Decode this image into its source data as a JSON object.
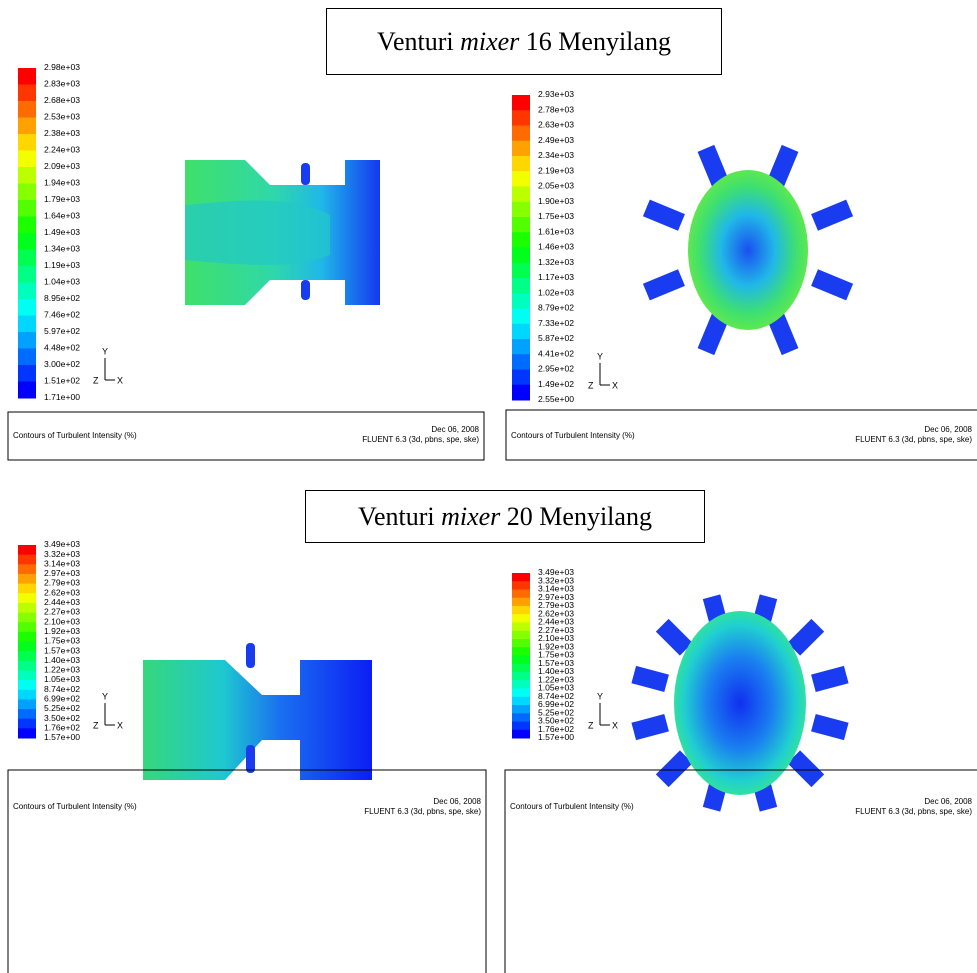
{
  "sections": [
    {
      "title": {
        "pre": "Venturi ",
        "italic": "mixer",
        "post": " 16 Menyilang"
      },
      "panels": [
        {
          "legend": [
            "2.98e+03",
            "2.83e+03",
            "2.68e+03",
            "2.53e+03",
            "2.38e+03",
            "2.24e+03",
            "2.09e+03",
            "1.94e+03",
            "1.79e+03",
            "1.64e+03",
            "1.49e+03",
            "1.34e+03",
            "1.19e+03",
            "1.04e+03",
            "8.95e+02",
            "7.46e+02",
            "5.97e+02",
            "4.48e+02",
            "3.00e+02",
            "1.51e+02",
            "1.71e+00"
          ],
          "caption": "Contours of Turbulent Intensity (%)",
          "date": "Dec 06, 2008",
          "solver": "FLUENT 6.3 (3d, pbns, spe, ske)",
          "axes": {
            "y": "Y",
            "z": "Z",
            "x": "X"
          }
        },
        {
          "legend": [
            "2.93e+03",
            "2.78e+03",
            "2.63e+03",
            "2.49e+03",
            "2.34e+03",
            "2.19e+03",
            "2.05e+03",
            "1.90e+03",
            "1.75e+03",
            "1.61e+03",
            "1.46e+03",
            "1.32e+03",
            "1.17e+03",
            "1.02e+03",
            "8.79e+02",
            "7.33e+02",
            "5.87e+02",
            "4.41e+02",
            "2.95e+02",
            "1.49e+02",
            "2.55e+00"
          ],
          "caption": "Contours of Turbulent Intensity (%)",
          "date": "Dec 06, 2008",
          "solver": "FLUENT 6.3 (3d, pbns, spe, ske)",
          "axes": {
            "y": "Y",
            "z": "Z",
            "x": "X"
          }
        }
      ]
    },
    {
      "title": {
        "pre": "Venturi ",
        "italic": "mixer",
        "post": " 20 Menyilang"
      },
      "panels": [
        {
          "legend": [
            "3.49e+03",
            "3.32e+03",
            "3.14e+03",
            "2.97e+03",
            "2.79e+03",
            "2.62e+03",
            "2.44e+03",
            "2.27e+03",
            "2.10e+03",
            "1.92e+03",
            "1.75e+03",
            "1.57e+03",
            "1.40e+03",
            "1.22e+03",
            "1.05e+03",
            "8.74e+02",
            "6.99e+02",
            "5.25e+02",
            "3.50e+02",
            "1.76e+02",
            "1.57e+00"
          ],
          "caption": "Contours of Turbulent Intensity (%)",
          "date": "Dec 06, 2008",
          "solver": "FLUENT 6.3 (3d, pbns, spe, ske)",
          "axes": {
            "y": "Y",
            "z": "Z",
            "x": "X"
          }
        },
        {
          "legend": [
            "3.49e+03",
            "3.32e+03",
            "3.14e+03",
            "2.97e+03",
            "2.79e+03",
            "2.62e+03",
            "2.44e+03",
            "2.27e+03",
            "2.10e+03",
            "1.92e+03",
            "1.75e+03",
            "1.57e+03",
            "1.40e+03",
            "1.22e+03",
            "1.05e+03",
            "8.74e+02",
            "6.99e+02",
            "5.25e+02",
            "3.50e+02",
            "1.76e+02",
            "1.57e+00"
          ],
          "caption": "Contours of Turbulent Intensity (%)",
          "date": "Dec 06, 2008",
          "solver": "FLUENT 6.3 (3d, pbns, spe, ske)",
          "axes": {
            "y": "Y",
            "z": "Z",
            "x": "X"
          }
        }
      ]
    }
  ]
}
